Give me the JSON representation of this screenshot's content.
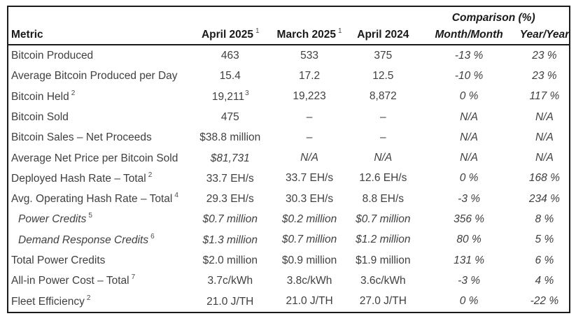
{
  "colors": {
    "border": "#1b1b1b",
    "header_text": "#1a1a1a",
    "body_text": "#404040",
    "background": "#ffffff"
  },
  "t": {
    "comparison_group_header": "Comparison (%)",
    "columns": {
      "metric": "Metric",
      "c1": "April 2025",
      "c1_sup": "1",
      "c2": "March 2025",
      "c2_sup": "1",
      "c3": "April 2024",
      "mm": "Month/Month",
      "yy": "Year/Year"
    },
    "rows": [
      {
        "metric": "Bitcoin Produced",
        "msup": "",
        "v1": "463",
        "v1sup": "",
        "v2": "533",
        "v3": "375",
        "mm": "-13 %",
        "yy": "23 %"
      },
      {
        "metric": "Average Bitcoin Produced per Day",
        "msup": "",
        "v1": "15.4",
        "v1sup": "",
        "v2": "17.2",
        "v3": "12.5",
        "mm": "-10 %",
        "yy": "23 %"
      },
      {
        "metric": "Bitcoin Held",
        "msup": "2",
        "v1": "19,211",
        "v1sup": "3",
        "v2": "19,223",
        "v3": "8,872",
        "mm": "0 %",
        "yy": "117 %"
      },
      {
        "metric": "Bitcoin Sold",
        "msup": "",
        "v1": "475",
        "v1sup": "",
        "v2": "–",
        "v3": "–",
        "mm": "N/A",
        "yy": "N/A"
      },
      {
        "metric": "Bitcoin Sales – Net Proceeds",
        "msup": "",
        "v1": "$38.8 million",
        "v1sup": "",
        "v2": "–",
        "v3": "–",
        "mm": "N/A",
        "yy": "N/A"
      },
      {
        "metric": "Average Net Price per Bitcoin Sold",
        "msup": "",
        "v1": "$81,731",
        "v1sup": "",
        "v2": "N/A",
        "v3": "N/A",
        "mm": "N/A",
        "yy": "N/A"
      },
      {
        "metric": "Deployed Hash Rate – Total",
        "msup": "2",
        "v1": "33.7 EH/s",
        "v1sup": "",
        "v2": "33.7 EH/s",
        "v3": "12.6 EH/s",
        "mm": "0 %",
        "yy": "168 %"
      },
      {
        "metric": "Avg. Operating Hash Rate – Total",
        "msup": "4",
        "v1": "29.3 EH/s",
        "v1sup": "",
        "v2": "30.3 EH/s",
        "v3": "8.8 EH/s",
        "mm": "-3 %",
        "yy": "234 %"
      },
      {
        "metric": "Power Credits",
        "msup": "5",
        "v1": "$0.7 million",
        "v1sup": "",
        "v2": "$0.2 million",
        "v3": "$0.7 million",
        "mm": "356 %",
        "yy": "8 %"
      },
      {
        "metric": "Demand Response Credits",
        "msup": "6",
        "v1": "$1.3 million",
        "v1sup": "",
        "v2": "$0.7 million",
        "v3": "$1.2 million",
        "mm": "80 %",
        "yy": "5 %"
      },
      {
        "metric": "Total Power Credits",
        "msup": "",
        "v1": "$2.0 million",
        "v1sup": "",
        "v2": "$0.9 million",
        "v3": "$1.9 million",
        "mm": "131 %",
        "yy": "6 %"
      },
      {
        "metric": "All-in Power Cost – Total",
        "msup": "7",
        "v1": "3.7c/kWh",
        "v1sup": "",
        "v2": "3.8c/kWh",
        "v3": "3.6c/kWh",
        "mm": "-3 %",
        "yy": "4 %"
      },
      {
        "metric": "Fleet Efficiency",
        "msup": "2",
        "v1": "21.0 J/TH",
        "v1sup": "",
        "v2": "21.0 J/TH",
        "v3": "27.0 J/TH",
        "mm": "0 %",
        "yy": "-22 %"
      }
    ]
  }
}
